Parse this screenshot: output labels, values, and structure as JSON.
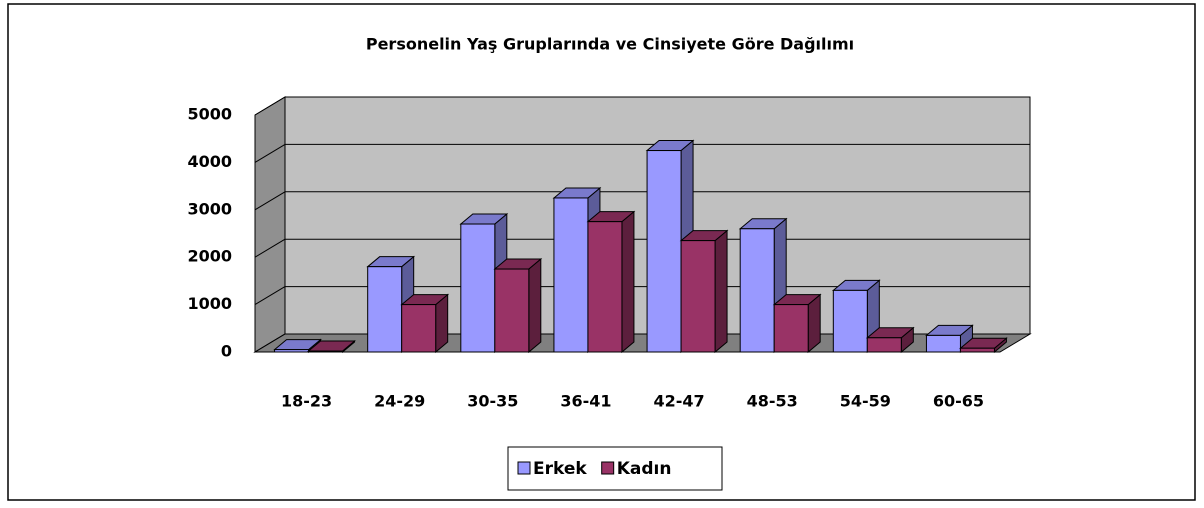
{
  "chart_data": {
    "type": "bar3d",
    "title": "Personelin Yaş Gruplarında ve Cinsiyete Göre Dağılımı",
    "categories": [
      "18-23",
      "24-29",
      "30-35",
      "36-41",
      "42-47",
      "48-53",
      "54-59",
      "60-65"
    ],
    "series": [
      {
        "name": "Erkek",
        "color": "#9999ff",
        "values": [
          50,
          1800,
          2700,
          3250,
          4250,
          2600,
          1300,
          350
        ]
      },
      {
        "name": "Kadın",
        "color": "#993366",
        "values": [
          20,
          1000,
          1750,
          2750,
          2350,
          1000,
          300,
          80
        ]
      }
    ],
    "ylim": [
      0,
      5000
    ],
    "yticks": [
      0,
      1000,
      2000,
      3000,
      4000,
      5000
    ],
    "grid": true
  }
}
